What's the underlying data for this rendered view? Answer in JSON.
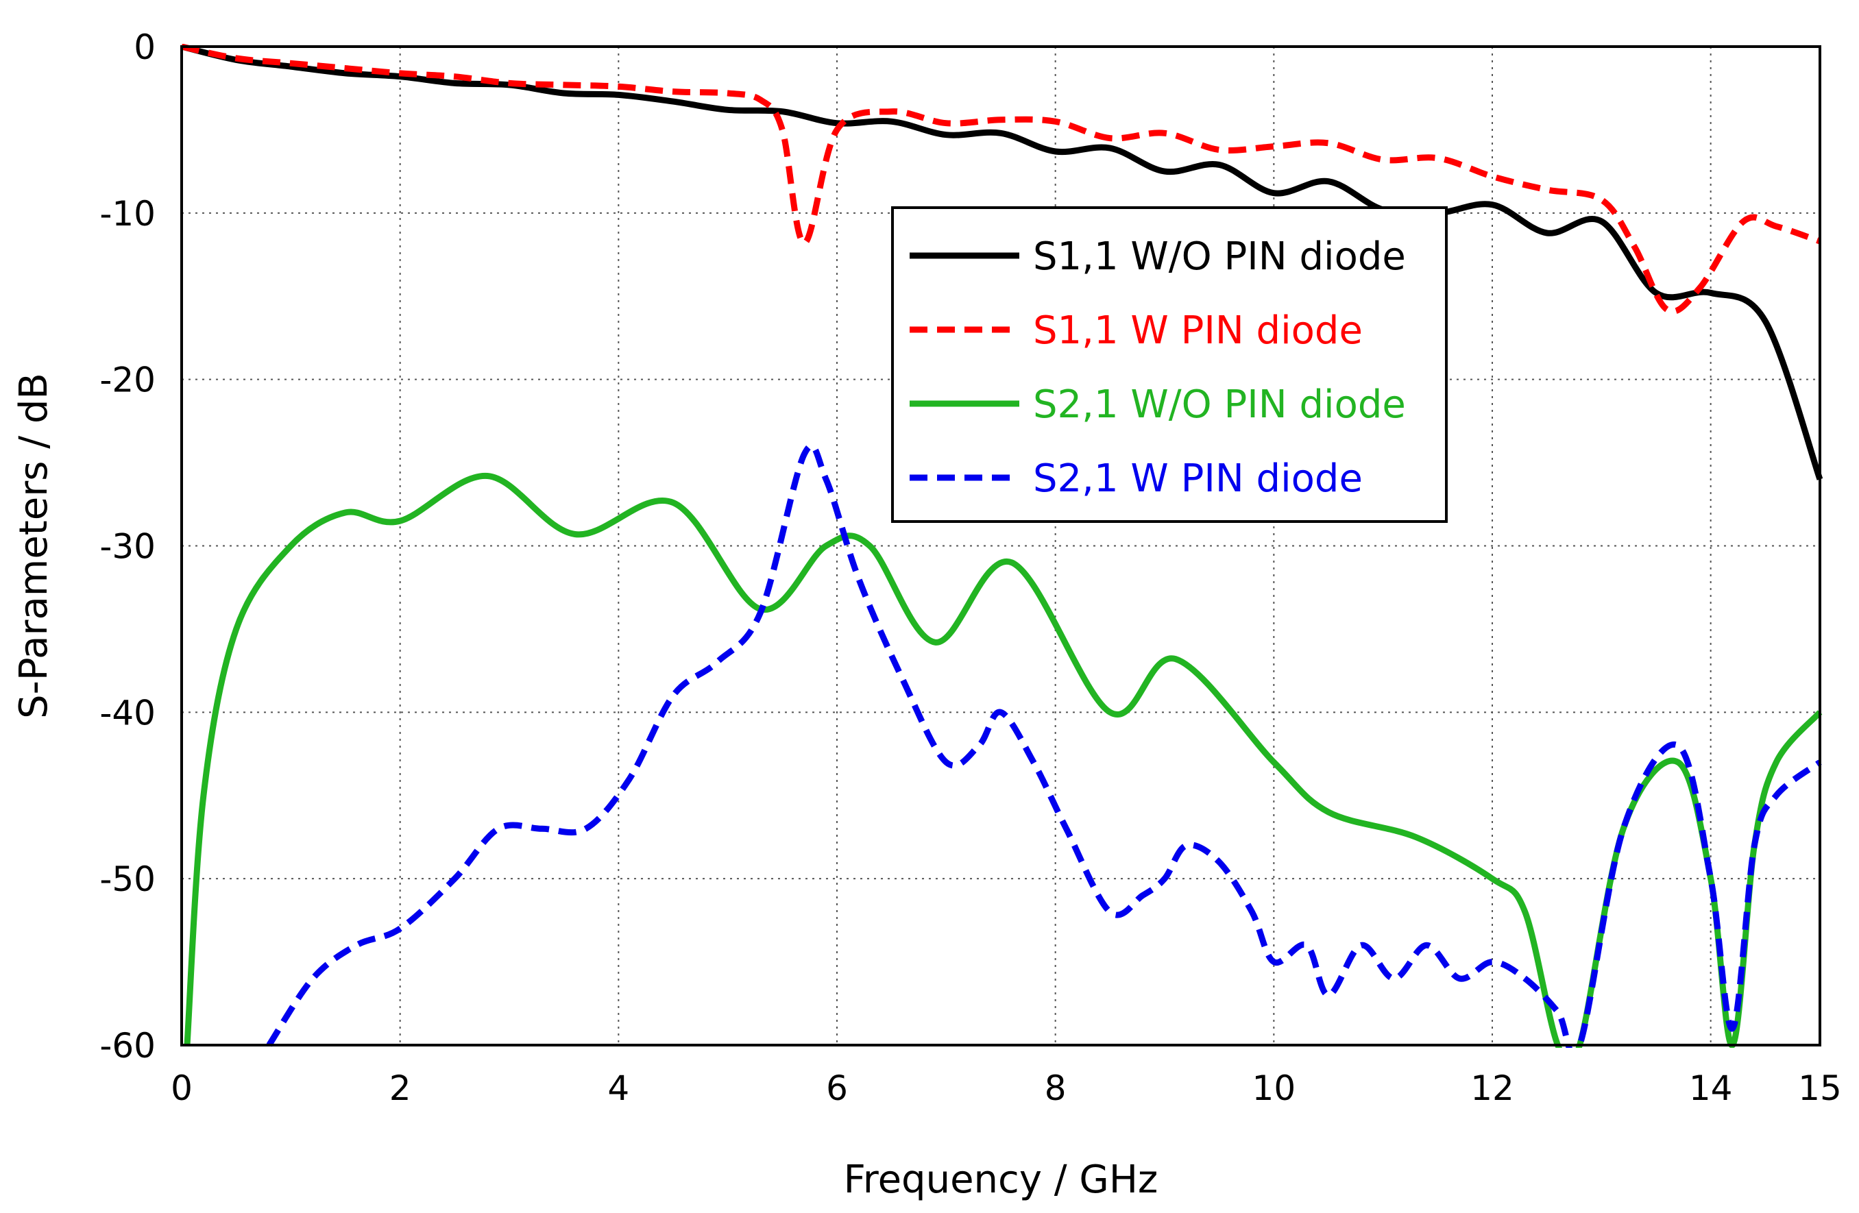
{
  "chart_data": {
    "type": "line",
    "title": "",
    "xlabel": "Frequency / GHz",
    "ylabel": "S-Parameters / dB",
    "xlim": [
      0,
      15
    ],
    "ylim": [
      -60,
      0
    ],
    "xticks": [
      0,
      2,
      4,
      6,
      8,
      10,
      12,
      14,
      15
    ],
    "xtick_labels": [
      "0",
      "2",
      "4",
      "6",
      "8",
      "10",
      "12",
      "14",
      "15"
    ],
    "yticks": [
      0,
      -10,
      -20,
      -30,
      -40,
      -50,
      -60
    ],
    "ytick_labels": [
      "0",
      "-10",
      "-20",
      "-30",
      "-40",
      "-50",
      "-60"
    ],
    "grid": true,
    "legend_position": "upper-middle-right",
    "series": [
      {
        "name": "S1,1 W/O PIN diode",
        "color": "#000000",
        "dash": "solid",
        "x": [
          0,
          0.5,
          1,
          1.5,
          2,
          2.5,
          3,
          3.5,
          4,
          4.5,
          5,
          5.5,
          6,
          6.5,
          7,
          7.5,
          8,
          8.5,
          9,
          9.5,
          10,
          10.5,
          11,
          11.5,
          12,
          12.5,
          13,
          13.5,
          14,
          14.5,
          15
        ],
        "values": [
          0,
          -0.8,
          -1.2,
          -1.6,
          -1.8,
          -2.2,
          -2.3,
          -2.8,
          -2.9,
          -3.3,
          -3.8,
          -3.9,
          -4.6,
          -4.5,
          -5.3,
          -5.2,
          -6.3,
          -6.1,
          -7.5,
          -7.1,
          -8.8,
          -8.1,
          -9.8,
          -10.0,
          -9.5,
          -11.2,
          -10.5,
          -14.8,
          -14.8,
          -16.5,
          -26
        ]
      },
      {
        "name": "S1,1 W PIN diode",
        "color": "#ff0000",
        "dash": "dashed",
        "x": [
          0,
          0.5,
          1,
          1.5,
          2,
          2.5,
          3,
          3.5,
          4,
          4.5,
          5,
          5.3,
          5.5,
          5.7,
          6,
          6.5,
          7,
          7.5,
          8,
          8.5,
          9,
          9.5,
          10,
          10.5,
          11,
          11.5,
          12,
          12.5,
          13,
          13.3,
          13.6,
          13.9,
          14.3,
          14.6,
          15
        ],
        "values": [
          0,
          -0.7,
          -1.0,
          -1.3,
          -1.6,
          -1.8,
          -2.2,
          -2.3,
          -2.4,
          -2.7,
          -2.8,
          -3.2,
          -5.0,
          -11.8,
          -5.0,
          -3.9,
          -4.6,
          -4.4,
          -4.5,
          -5.5,
          -5.2,
          -6.2,
          -6.0,
          -5.8,
          -6.8,
          -6.7,
          -7.8,
          -8.6,
          -9.2,
          -12.0,
          -15.8,
          -14.5,
          -10.5,
          -10.8,
          -11.7
        ]
      },
      {
        "name": "S2,1 W/O PIN diode",
        "color": "#22b422",
        "dash": "solid",
        "x": [
          0.05,
          0.2,
          0.5,
          1,
          1.5,
          2,
          2.8,
          3.6,
          4.5,
          5.3,
          5.9,
          6.3,
          6.9,
          7.6,
          8.5,
          9.1,
          10,
          10.5,
          11.3,
          12,
          12.3,
          12.6,
          12.8,
          13.2,
          13.7,
          14.0,
          14.2,
          14.4,
          14.6,
          15
        ],
        "values": [
          -60,
          -45,
          -35,
          -30,
          -28,
          -28.5,
          -25.8,
          -29.3,
          -27.4,
          -33.8,
          -30,
          -30,
          -35.8,
          -31,
          -40,
          -36.8,
          -43,
          -46,
          -47.5,
          -50,
          -52,
          -60,
          -60,
          -47,
          -43,
          -50,
          -60,
          -48,
          -43,
          -40
        ]
      },
      {
        "name": "S2,1 W PIN diode",
        "color": "#0000ee",
        "dash": "dashed",
        "x": [
          0.8,
          1.2,
          1.6,
          2.0,
          2.5,
          2.9,
          3.3,
          3.7,
          4.1,
          4.5,
          4.9,
          5.3,
          5.7,
          5.9,
          6.2,
          6.6,
          7.0,
          7.3,
          7.5,
          7.8,
          8.1,
          8.5,
          8.8,
          9.0,
          9.2,
          9.5,
          9.8,
          10.0,
          10.3,
          10.5,
          10.8,
          11.1,
          11.4,
          11.7,
          12.0,
          12.3,
          12.6,
          12.8,
          13.2,
          13.7,
          14.0,
          14.2,
          14.4,
          14.6,
          15
        ],
        "values": [
          -60,
          -56,
          -54,
          -53,
          -50,
          -47,
          -47,
          -47,
          -44,
          -39,
          -37,
          -34,
          -24.5,
          -26,
          -32,
          -38,
          -43,
          -42,
          -40,
          -43,
          -47,
          -52,
          -51,
          -50,
          -48,
          -49,
          -52,
          -55,
          -54,
          -57,
          -54,
          -56,
          -54,
          -56,
          -55,
          -56,
          -58,
          -60,
          -47,
          -42,
          -50,
          -59,
          -48,
          -45,
          -43
        ]
      }
    ]
  }
}
